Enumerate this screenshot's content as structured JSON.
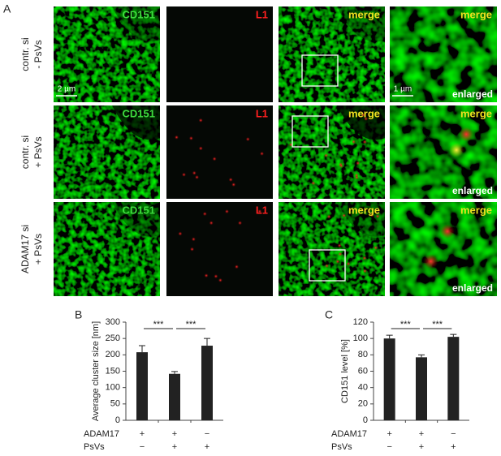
{
  "panel_a": {
    "label": "A",
    "rows": [
      {
        "label_lines": [
          "contr. si",
          "- PsVs"
        ]
      },
      {
        "label_lines": [
          "contr. si",
          "+ PsVs"
        ]
      },
      {
        "label_lines": [
          "ADAM17 si",
          "+ PsVs"
        ]
      }
    ],
    "columns": [
      "CD151",
      "L1",
      "merge",
      "merge"
    ],
    "enlarged_label": "enlarged",
    "scale_bars": [
      "2 µm",
      "1 µm"
    ]
  },
  "chart_data": [
    {
      "type": "bar",
      "panel": "B",
      "ylabel": "Average cluster size [nm]",
      "categories": [
        null,
        null,
        null
      ],
      "values": [
        208,
        142,
        228
      ],
      "error": [
        20,
        7,
        22
      ],
      "color": "#222222",
      "ylim": [
        0,
        300
      ],
      "yticks": [
        0,
        50,
        100,
        150,
        200,
        250,
        300
      ],
      "significance_labels": [
        "***",
        "***"
      ],
      "conditions": [
        {
          "name": "ADAM17",
          "signs": [
            "+",
            "+",
            "−"
          ]
        },
        {
          "name": "PsVs",
          "signs": [
            "−",
            "+",
            "+"
          ]
        }
      ]
    },
    {
      "type": "bar",
      "panel": "C",
      "ylabel": "CD151 level [%]",
      "categories": [
        null,
        null,
        null
      ],
      "values": [
        100,
        77,
        102
      ],
      "error": [
        4,
        3,
        3
      ],
      "color": "#222222",
      "ylim": [
        0,
        120
      ],
      "yticks": [
        0,
        20,
        40,
        60,
        80,
        100,
        120
      ],
      "significance_labels": [
        "***",
        "***"
      ],
      "conditions": [
        {
          "name": "ADAM17",
          "signs": [
            "+",
            "+",
            "−"
          ]
        },
        {
          "name": "PsVs",
          "signs": [
            "−",
            "+",
            "+"
          ]
        }
      ]
    }
  ]
}
